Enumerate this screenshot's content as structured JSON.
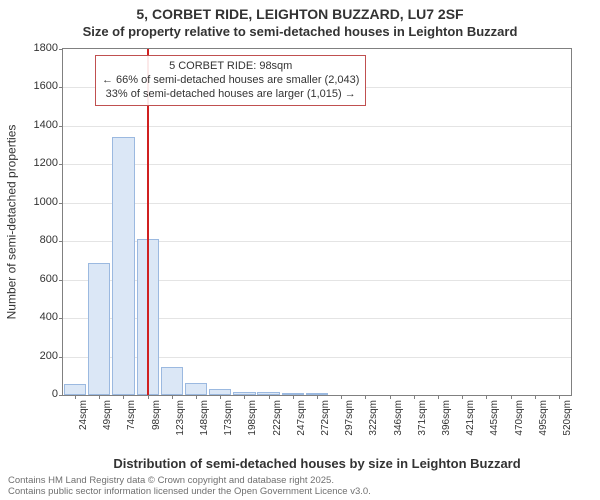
{
  "title": {
    "line1": "5, CORBET RIDE, LEIGHTON BUZZARD, LU7 2SF",
    "line2": "Size of property relative to semi-detached houses in Leighton Buzzard",
    "fontsize_line1": 14,
    "fontsize_line2": 13,
    "color": "#333333"
  },
  "chart": {
    "type": "histogram",
    "background_color": "#ffffff",
    "border_color": "#808080",
    "grid_color": "#e4e4e4",
    "bar_fill": "#dbe7f6",
    "bar_border": "#9bb9e0",
    "marker_color": "#d02020",
    "marker_x_value": 98,
    "ylim": [
      0,
      1800
    ],
    "ytick_step": 200,
    "categories": [
      "24sqm",
      "49sqm",
      "74sqm",
      "98sqm",
      "123sqm",
      "148sqm",
      "173sqm",
      "198sqm",
      "222sqm",
      "247sqm",
      "272sqm",
      "297sqm",
      "322sqm",
      "346sqm",
      "371sqm",
      "396sqm",
      "421sqm",
      "445sqm",
      "470sqm",
      "495sqm",
      "520sqm"
    ],
    "values": [
      55,
      685,
      1340,
      812,
      145,
      60,
      30,
      18,
      15,
      10,
      6,
      0,
      0,
      0,
      0,
      0,
      0,
      0,
      0,
      0,
      0
    ],
    "bar_width_ratio": 0.92,
    "annotation": {
      "line1": "5 CORBET RIDE: 98sqm",
      "line2": "← 66% of semi-detached houses are smaller (2,043)",
      "line3": "33% of semi-detached houses are larger (1,015) →",
      "border_color": "#c05050",
      "fontsize": 11
    }
  },
  "ylabel": "Number of semi-detached properties",
  "xlabel": "Distribution of semi-detached houses by size in Leighton Buzzard",
  "label_fontsize": 12,
  "xlabel_fontsize": 13,
  "xtick_fontsize": 10,
  "ytick_fontsize": 11,
  "footer": {
    "line1": "Contains HM Land Registry data © Crown copyright and database right 2025.",
    "line2": "Contains public sector information licensed under the Open Government Licence v3.0.",
    "color": "#707070",
    "fontsize": 9.5
  }
}
